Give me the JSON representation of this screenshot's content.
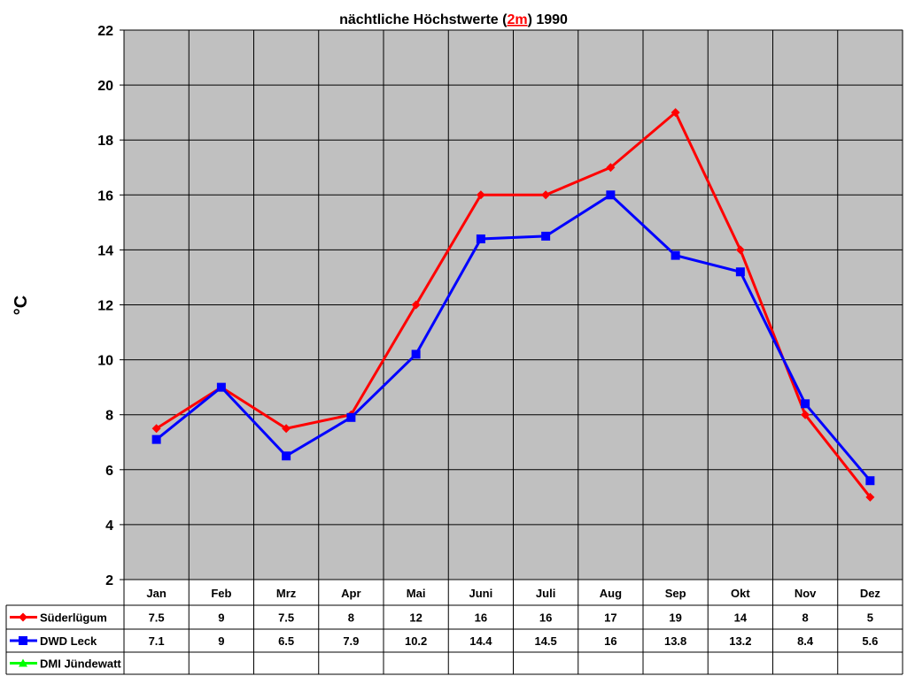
{
  "chart_data": {
    "type": "line",
    "title_parts": {
      "before": "nächtliche Höchstwerte (",
      "highlight": "2m",
      "after": ") 1990"
    },
    "highlight_color": "#ff0000",
    "xlabel": "",
    "ylabel": "°C",
    "ylim": [
      2,
      22
    ],
    "yticks": [
      2,
      4,
      6,
      8,
      10,
      12,
      14,
      16,
      18,
      20,
      22
    ],
    "grid": true,
    "plot_background": "#c0c0c0",
    "legend": "data-table-bottom",
    "categories": [
      "Jan",
      "Feb",
      "Mrz",
      "Apr",
      "Mai",
      "Juni",
      "Juli",
      "Aug",
      "Sep",
      "Okt",
      "Nov",
      "Dez"
    ],
    "series": [
      {
        "name": "Süderlügum",
        "color": "#ff0000",
        "marker": "diamond",
        "values": [
          7.5,
          9,
          7.5,
          8,
          12,
          16,
          16,
          17,
          19,
          14,
          8,
          5
        ]
      },
      {
        "name": "DWD Leck",
        "color": "#0000ff",
        "marker": "square",
        "values": [
          7.1,
          9,
          6.5,
          7.9,
          10.2,
          14.4,
          14.5,
          16,
          13.8,
          13.2,
          8.4,
          5.6
        ]
      },
      {
        "name": "DMI Jündewatt",
        "color": "#00ff00",
        "marker": "triangle",
        "values": [
          null,
          null,
          null,
          null,
          null,
          null,
          null,
          null,
          null,
          null,
          null,
          null
        ]
      }
    ]
  }
}
